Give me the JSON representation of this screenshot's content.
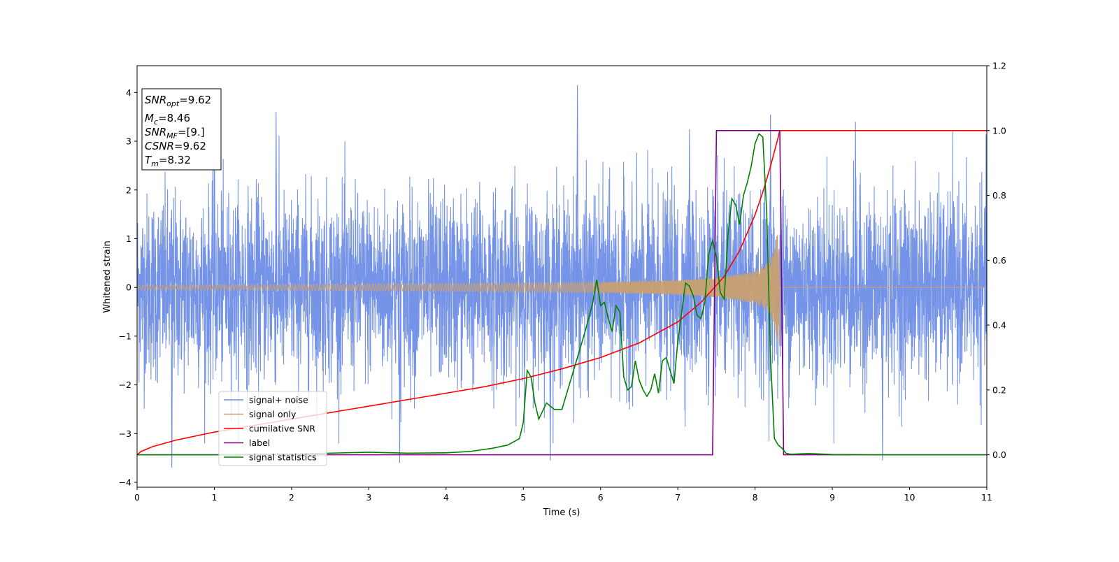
{
  "chart_data": {
    "type": "line",
    "xlabel": "Time (s)",
    "ylabel": "Whitened strain",
    "xlim": [
      0,
      11
    ],
    "ylim": [
      -4.1,
      4.55
    ],
    "ylim_right": [
      -0.1,
      1.2
    ],
    "x_ticks": [
      0,
      1,
      2,
      3,
      4,
      5,
      6,
      7,
      8,
      9,
      10,
      11
    ],
    "x_tick_labels": [
      "0",
      "1",
      "2",
      "3",
      "4",
      "5",
      "6",
      "7",
      "8",
      "9",
      "10",
      "11"
    ],
    "y_ticks": [
      -4,
      -3,
      -2,
      -1,
      0,
      1,
      2,
      3,
      4
    ],
    "y_tick_labels": [
      "−4",
      "−3",
      "−2",
      "−1",
      "0",
      "1",
      "2",
      "3",
      "4"
    ],
    "y2_ticks": [
      0.0,
      0.2,
      0.4,
      0.6,
      0.8,
      1.0,
      1.2
    ],
    "y2_tick_labels": [
      "0.0",
      "0.2",
      "0.4",
      "0.6",
      "0.8",
      "1.0",
      "1.2"
    ],
    "grid": false,
    "legend_position": "lower-left",
    "annotation": {
      "lines": [
        {
          "var": "SNR",
          "sub": "opt",
          "value": "=9.62"
        },
        {
          "var": "M",
          "sub": "c",
          "value": "=8.46"
        },
        {
          "var": "SNR",
          "sub": "MF",
          "value": "=[9.]"
        },
        {
          "var": "CSNR",
          "sub": "",
          "value": "=9.62"
        },
        {
          "var": "T",
          "sub": "m",
          "value": "=8.32"
        }
      ]
    },
    "series": [
      {
        "name": "signal+ noise",
        "color": "#6f8ee6",
        "axis": "left",
        "kind": "noise",
        "amplitude_std": 1.0,
        "spikes": [
          [
            0.45,
            -3.7
          ],
          [
            1.0,
            3.55
          ],
          [
            1.8,
            3.6
          ],
          [
            3.4,
            -3.6
          ],
          [
            5.35,
            -3.55
          ],
          [
            5.7,
            4.15
          ],
          [
            7.15,
            3.25
          ],
          [
            8.2,
            3.55
          ],
          [
            9.3,
            3.4
          ],
          [
            9.65,
            -3.55
          ]
        ]
      },
      {
        "name": "signal only",
        "color": "#c9a071",
        "axis": "left",
        "kind": "chirp",
        "t_start": 0,
        "t_merge": 8.32,
        "envelope": [
          [
            0,
            0.05
          ],
          [
            2,
            0.06
          ],
          [
            4,
            0.08
          ],
          [
            6,
            0.11
          ],
          [
            7,
            0.15
          ],
          [
            7.5,
            0.2
          ],
          [
            8.0,
            0.33
          ],
          [
            8.2,
            0.55
          ],
          [
            8.3,
            1.15
          ],
          [
            8.32,
            1.25
          ]
        ]
      },
      {
        "name": "cumilative SNR",
        "color": "#ff0000",
        "axis": "right",
        "x": [
          0,
          0.05,
          0.2,
          0.5,
          1,
          1.5,
          2,
          2.5,
          3,
          3.5,
          4,
          4.5,
          5,
          5.5,
          6,
          6.5,
          7,
          7.3,
          7.6,
          7.8,
          8.0,
          8.1,
          8.2,
          8.3,
          8.32,
          11
        ],
        "y": [
          0,
          0.01,
          0.025,
          0.045,
          0.07,
          0.09,
          0.11,
          0.13,
          0.15,
          0.17,
          0.19,
          0.21,
          0.235,
          0.265,
          0.3,
          0.345,
          0.41,
          0.47,
          0.55,
          0.63,
          0.74,
          0.81,
          0.89,
          0.98,
          1.0,
          1.0
        ]
      },
      {
        "name": "label",
        "color": "#800080",
        "axis": "right",
        "x": [
          0,
          7.45,
          7.5,
          8.32,
          8.37,
          11
        ],
        "y": [
          0,
          0,
          1,
          1,
          0,
          0
        ]
      },
      {
        "name": "signal statistics",
        "color": "#008000",
        "axis": "right",
        "x": [
          0,
          1,
          2,
          3,
          3.5,
          4,
          4.3,
          4.6,
          4.8,
          4.95,
          5.0,
          5.05,
          5.1,
          5.15,
          5.2,
          5.3,
          5.4,
          5.5,
          5.6,
          5.7,
          5.8,
          5.9,
          5.95,
          6.0,
          6.05,
          6.1,
          6.15,
          6.2,
          6.25,
          6.3,
          6.35,
          6.4,
          6.45,
          6.5,
          6.55,
          6.6,
          6.65,
          6.7,
          6.75,
          6.8,
          6.85,
          6.9,
          6.95,
          7.0,
          7.05,
          7.1,
          7.15,
          7.2,
          7.25,
          7.3,
          7.35,
          7.4,
          7.45,
          7.5,
          7.55,
          7.6,
          7.65,
          7.7,
          7.75,
          7.8,
          7.85,
          7.9,
          7.95,
          8.0,
          8.05,
          8.1,
          8.15,
          8.2,
          8.25,
          8.3,
          8.35,
          8.4,
          8.45,
          8.5,
          8.6,
          8.7,
          9,
          9.5,
          10,
          11
        ],
        "y": [
          0,
          0,
          0.002,
          0.008,
          0.005,
          0.006,
          0.01,
          0.02,
          0.03,
          0.05,
          0.1,
          0.26,
          0.24,
          0.16,
          0.11,
          0.16,
          0.14,
          0.14,
          0.22,
          0.3,
          0.38,
          0.47,
          0.54,
          0.46,
          0.47,
          0.42,
          0.38,
          0.46,
          0.44,
          0.24,
          0.2,
          0.21,
          0.29,
          0.23,
          0.2,
          0.18,
          0.2,
          0.25,
          0.19,
          0.29,
          0.3,
          0.26,
          0.22,
          0.35,
          0.44,
          0.53,
          0.52,
          0.49,
          0.43,
          0.42,
          0.47,
          0.62,
          0.66,
          0.61,
          0.5,
          0.48,
          0.68,
          0.79,
          0.77,
          0.71,
          0.8,
          0.84,
          0.89,
          0.96,
          0.99,
          0.98,
          0.75,
          0.3,
          0.05,
          0.03,
          0.02,
          0.005,
          0.002,
          0.002,
          0.003,
          0.004,
          0.001,
          0,
          0,
          0
        ]
      }
    ]
  }
}
